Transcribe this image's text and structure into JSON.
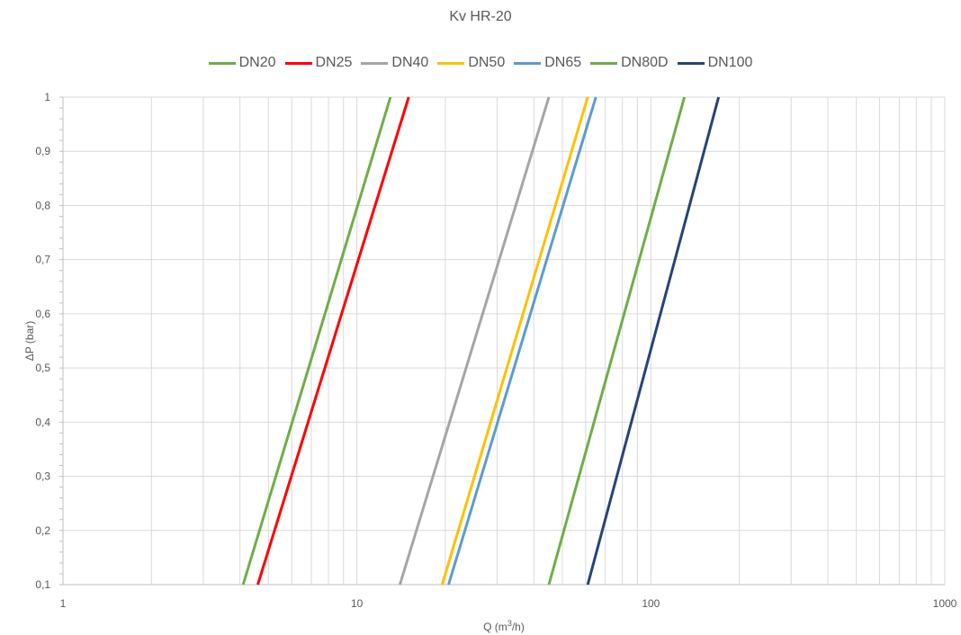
{
  "chart_data": {
    "type": "line",
    "title": "Kv HR-20",
    "xlabel_prefix": "Q (m",
    "xlabel_sup": "3",
    "xlabel_suffix": "/h)",
    "ylabel": "ΔP (bar)",
    "x_scale": "log",
    "xlim": [
      1,
      1000
    ],
    "ylim": [
      0.1,
      1
    ],
    "x_ticks": [
      1,
      10,
      100,
      1000
    ],
    "x_tick_labels": [
      "1",
      "10",
      "100",
      "1000"
    ],
    "y_ticks": [
      0.1,
      0.2,
      0.3,
      0.4,
      0.5,
      0.6,
      0.7,
      0.8,
      0.9,
      1
    ],
    "y_tick_labels": [
      "0,1",
      "0,2",
      "0,3",
      "0,4",
      "0,5",
      "0,6",
      "0,7",
      "0,8",
      "0,9",
      "1"
    ],
    "grid": true,
    "legend_position": "top-center",
    "series": [
      {
        "name": "DN20",
        "color": "#70ad47",
        "x": [
          4.1,
          13.0
        ],
        "y": [
          0.1,
          1
        ]
      },
      {
        "name": "DN25",
        "color": "#ff0000",
        "x": [
          4.6,
          15.0
        ],
        "y": [
          0.1,
          1
        ]
      },
      {
        "name": "DN40",
        "color": "#a5a5a5",
        "x": [
          14.0,
          45.0
        ],
        "y": [
          0.1,
          1
        ]
      },
      {
        "name": "DN50",
        "color": "#ffc000",
        "x": [
          19.5,
          61.0
        ],
        "y": [
          0.1,
          1
        ]
      },
      {
        "name": "DN65",
        "color": "#5b9bd5",
        "x": [
          20.5,
          65.0
        ],
        "y": [
          0.1,
          1
        ]
      },
      {
        "name": "DN80D",
        "color": "#70ad47",
        "x": [
          45.0,
          130.0
        ],
        "y": [
          0.1,
          1
        ]
      },
      {
        "name": "DN100",
        "color": "#264478",
        "x": [
          61.0,
          170.0
        ],
        "y": [
          0.1,
          1
        ]
      }
    ]
  }
}
